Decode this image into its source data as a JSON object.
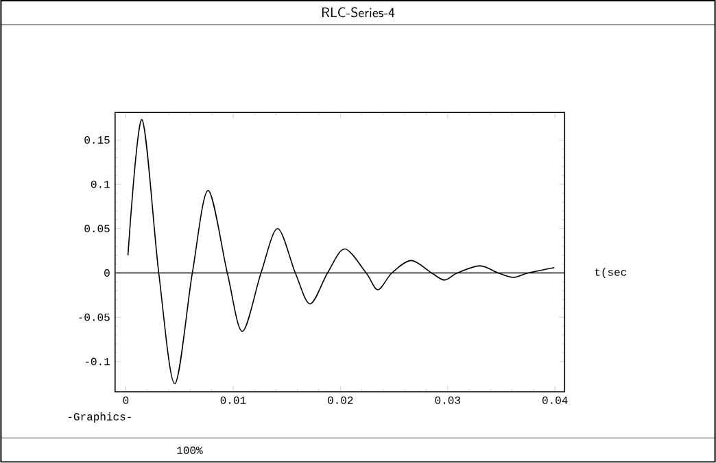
{
  "chart_data": {
    "type": "line",
    "title": "RLC-Series-4",
    "xlabel": "t(sec",
    "annotations": [
      "-Graphics-",
      "100%"
    ],
    "x": [
      0.0002,
      0.0015,
      0.00307,
      0.00456,
      0.0062,
      0.00767,
      0.00946,
      0.01086,
      0.0126,
      0.01415,
      0.0158,
      0.01718,
      0.0188,
      0.0204,
      0.0224,
      0.0235,
      0.0248,
      0.0266,
      0.0285,
      0.0297,
      0.0309,
      0.033,
      0.0347,
      0.0361,
      0.0375,
      0.03995
    ],
    "series": [
      {
        "color": "#000000",
        "values": [
          0.02,
          0.173,
          0,
          -0.125,
          0,
          0.093,
          0,
          -0.066,
          0,
          0.05,
          0,
          -0.035,
          0,
          0.027,
          0,
          -0.019,
          0,
          0.014,
          0,
          -0.008,
          0,
          0.008,
          0,
          -0.005,
          0,
          0.006
        ]
      }
    ],
    "xlim": [
      -0.001,
      0.0409
    ],
    "ylim": [
      -0.134,
      0.181
    ],
    "xticks": [
      0,
      0.01,
      0.02,
      0.03,
      0.04
    ],
    "yticks": [
      -0.1,
      -0.05,
      0,
      0.05,
      0.1,
      0.15
    ],
    "ref_lines": [
      {
        "axis": "y",
        "value": 0,
        "color": "#000000"
      }
    ]
  }
}
